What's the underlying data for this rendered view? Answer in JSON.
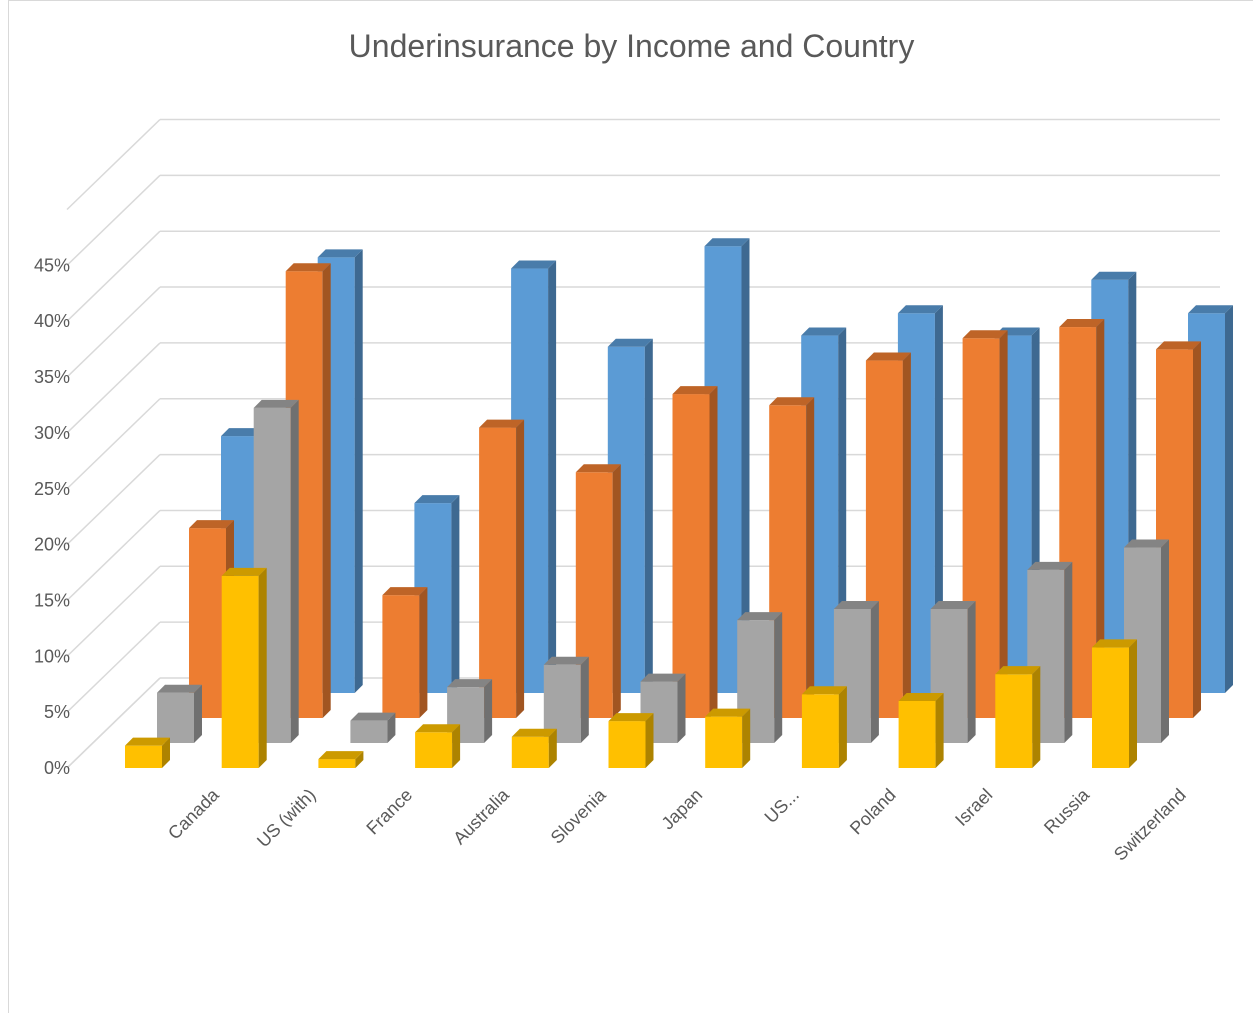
{
  "chart_data": {
    "type": "bar",
    "title": "Underinsurance by Income and Country",
    "categories": [
      "Canada",
      "US (with)",
      "France",
      "Australia",
      "Slovenia",
      "Japan",
      "US...",
      "Poland",
      "Israel",
      "Russia",
      "Switzerland"
    ],
    "series": [
      {
        "values": [
          23,
          39,
          17,
          38,
          31,
          40,
          32,
          34,
          32,
          37,
          34
        ],
        "color": "#5b9bd5"
      },
      {
        "values": [
          17,
          40,
          11,
          26,
          22,
          29,
          28,
          32,
          34,
          35,
          33
        ],
        "color": "#ed7d31"
      },
      {
        "values": [
          4.5,
          30,
          2,
          5,
          7,
          5.5,
          11,
          12,
          12,
          15.5,
          17.5
        ],
        "color": "#a5a5a5"
      },
      {
        "values": [
          2,
          17.2,
          0.8,
          3.2,
          2.8,
          4.2,
          4.6,
          6.6,
          6,
          8.4,
          10.8
        ],
        "color": "#ffc000"
      }
    ],
    "y_ticks": [
      "0%",
      "5%",
      "10%",
      "15%",
      "20%",
      "25%",
      "30%",
      "35%",
      "40%",
      "45%"
    ],
    "ylim": [
      0,
      45
    ],
    "grid": true,
    "view": "3d-column",
    "legend": "none"
  }
}
